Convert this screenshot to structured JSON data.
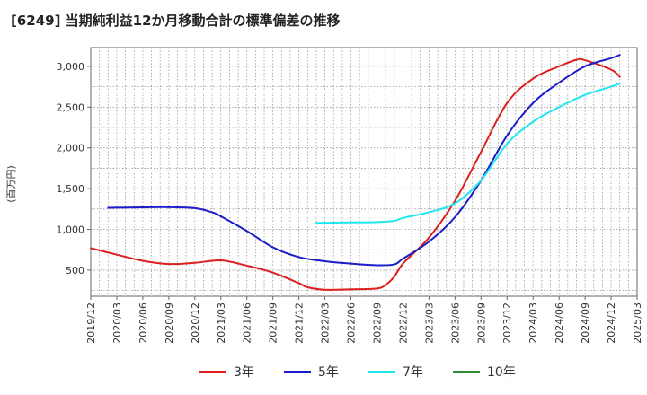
{
  "chart_data": {
    "type": "line",
    "title": "[6249]  当期純利益12か月移動合計の標準偏差の推移",
    "ylabel": "(百万円)",
    "xlabel": "",
    "ylim": [
      180,
      3230
    ],
    "yticks": [
      500,
      1000,
      1500,
      2000,
      2500,
      3000
    ],
    "ytick_labels": [
      "500",
      "1,000",
      "1,500",
      "2,000",
      "2,500",
      "3,000"
    ],
    "x_start": "2019/12",
    "x_end": "2025/03",
    "x_tick_labels": [
      "2019/12",
      "2020/03",
      "2020/06",
      "2020/09",
      "2020/12",
      "2021/03",
      "2021/06",
      "2021/09",
      "2021/12",
      "2022/03",
      "2022/06",
      "2022/09",
      "2022/12",
      "2023/03",
      "2023/06",
      "2023/09",
      "2023/12",
      "2024/03",
      "2024/06",
      "2024/09",
      "2024/12",
      "2025/03"
    ],
    "grid": true,
    "legend_position": "bottom",
    "series": [
      {
        "name": "3年",
        "color": "#dd1f1f",
        "points": [
          [
            "2019/12",
            770
          ],
          [
            "2020/03",
            690
          ],
          [
            "2020/06",
            615
          ],
          [
            "2020/09",
            575
          ],
          [
            "2020/12",
            590
          ],
          [
            "2021/03",
            620
          ],
          [
            "2021/06",
            555
          ],
          [
            "2021/09",
            470
          ],
          [
            "2021/12",
            340
          ],
          [
            "2022/01",
            290
          ],
          [
            "2022/03",
            260
          ],
          [
            "2022/06",
            265
          ],
          [
            "2022/09",
            275
          ],
          [
            "2022/10",
            320
          ],
          [
            "2022/11",
            420
          ],
          [
            "2022/12",
            580
          ],
          [
            "2023/03",
            900
          ],
          [
            "2023/06",
            1350
          ],
          [
            "2023/09",
            1950
          ],
          [
            "2023/12",
            2550
          ],
          [
            "2024/03",
            2850
          ],
          [
            "2024/06",
            3000
          ],
          [
            "2024/08",
            3080
          ],
          [
            "2024/09",
            3075
          ],
          [
            "2024/12",
            2960
          ],
          [
            "2025/01",
            2870
          ]
        ]
      },
      {
        "name": "5年",
        "color": "#1c1cc8",
        "points": [
          [
            "2020/02",
            1265
          ],
          [
            "2020/06",
            1270
          ],
          [
            "2020/09",
            1272
          ],
          [
            "2020/12",
            1260
          ],
          [
            "2021/02",
            1210
          ],
          [
            "2021/03",
            1160
          ],
          [
            "2021/06",
            980
          ],
          [
            "2021/09",
            780
          ],
          [
            "2021/12",
            660
          ],
          [
            "2022/03",
            610
          ],
          [
            "2022/06",
            580
          ],
          [
            "2022/09",
            560
          ],
          [
            "2022/11",
            570
          ],
          [
            "2022/12",
            640
          ],
          [
            "2023/03",
            850
          ],
          [
            "2023/06",
            1150
          ],
          [
            "2023/09",
            1600
          ],
          [
            "2023/12",
            2150
          ],
          [
            "2024/03",
            2550
          ],
          [
            "2024/06",
            2800
          ],
          [
            "2024/09",
            3000
          ],
          [
            "2024/12",
            3100
          ],
          [
            "2025/01",
            3140
          ]
        ]
      },
      {
        "name": "7年",
        "color": "#20e6f0",
        "points": [
          [
            "2022/02",
            1080
          ],
          [
            "2022/06",
            1085
          ],
          [
            "2022/09",
            1090
          ],
          [
            "2022/11",
            1105
          ],
          [
            "2022/12",
            1140
          ],
          [
            "2023/03",
            1210
          ],
          [
            "2023/06",
            1320
          ],
          [
            "2023/09",
            1600
          ],
          [
            "2023/12",
            2050
          ],
          [
            "2024/03",
            2320
          ],
          [
            "2024/06",
            2500
          ],
          [
            "2024/09",
            2650
          ],
          [
            "2024/12",
            2750
          ],
          [
            "2025/01",
            2790
          ]
        ]
      },
      {
        "name": "10年",
        "color": "#2e8b2e",
        "points": []
      }
    ]
  }
}
